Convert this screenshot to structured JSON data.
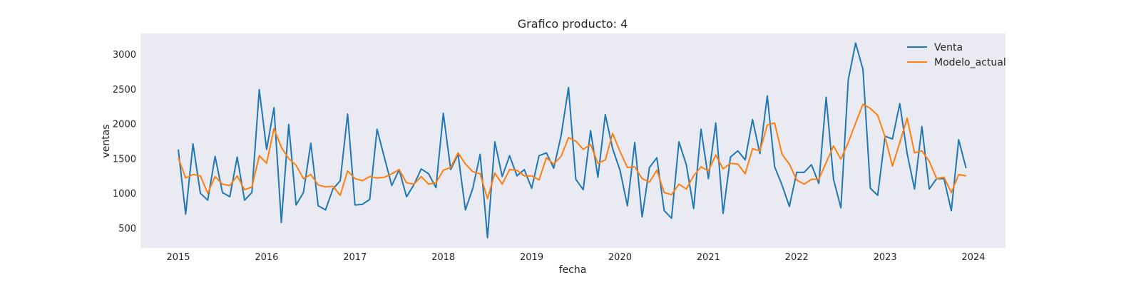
{
  "chart_data": {
    "type": "line",
    "title": "Grafico producto: 4",
    "xlabel": "fecha",
    "ylabel": "ventas",
    "x_start": "2015-01",
    "x_frequency": "monthly",
    "x_ticks": [
      "2015",
      "2016",
      "2017",
      "2018",
      "2019",
      "2020",
      "2021",
      "2022",
      "2023",
      "2024"
    ],
    "y_ticks": [
      500,
      1000,
      1500,
      2000,
      2500,
      3000
    ],
    "ylim": [
      200,
      3300
    ],
    "grid": false,
    "legend_position": "top-right",
    "background": "#eaeaf2",
    "series": [
      {
        "name": "Venta",
        "color": "#1f77b4",
        "values": [
          1630,
          700,
          1710,
          1000,
          900,
          1530,
          1010,
          950,
          1520,
          900,
          1010,
          2490,
          1630,
          2230,
          580,
          1990,
          830,
          1010,
          1720,
          820,
          760,
          1060,
          1180,
          2140,
          830,
          840,
          910,
          1920,
          1510,
          1110,
          1340,
          950,
          1120,
          1350,
          1280,
          1080,
          2150,
          1340,
          1560,
          760,
          1070,
          1560,
          360,
          1740,
          1240,
          1540,
          1250,
          1340,
          1070,
          1540,
          1580,
          1360,
          1830,
          2520,
          1200,
          1050,
          1900,
          1230,
          2130,
          1640,
          1330,
          820,
          1730,
          660,
          1370,
          1510,
          750,
          640,
          1740,
          1410,
          780,
          1920,
          1210,
          2010,
          710,
          1520,
          1610,
          1480,
          2060,
          1570,
          2400,
          1380,
          1120,
          810,
          1300,
          1300,
          1410,
          1140,
          2380,
          1200,
          790,
          2630,
          3160,
          2780,
          1070,
          970,
          1820,
          1780,
          2290,
          1570,
          1060,
          1960,
          1060,
          1210,
          1210,
          750,
          1770,
          1360
        ]
      },
      {
        "name": "Modelo_actual",
        "color": "#ff7f0e",
        "values": [
          1510,
          1220,
          1270,
          1250,
          1000,
          1240,
          1130,
          1110,
          1250,
          1050,
          1090,
          1540,
          1430,
          1930,
          1660,
          1500,
          1400,
          1210,
          1270,
          1120,
          1090,
          1100,
          970,
          1320,
          1210,
          1180,
          1240,
          1220,
          1230,
          1280,
          1340,
          1150,
          1130,
          1240,
          1130,
          1150,
          1330,
          1370,
          1580,
          1420,
          1310,
          1280,
          920,
          1290,
          1130,
          1340,
          1330,
          1250,
          1250,
          1190,
          1510,
          1420,
          1530,
          1800,
          1750,
          1630,
          1700,
          1430,
          1480,
          1860,
          1600,
          1370,
          1380,
          1210,
          1160,
          1330,
          1010,
          980,
          1130,
          1060,
          1250,
          1380,
          1320,
          1550,
          1350,
          1430,
          1420,
          1280,
          1640,
          1610,
          1980,
          2010,
          1560,
          1420,
          1190,
          1130,
          1200,
          1200,
          1440,
          1680,
          1490,
          1730,
          2010,
          2280,
          2220,
          2120,
          1810,
          1390,
          1730,
          2080,
          1580,
          1610,
          1460,
          1210,
          1230,
          1010,
          1270,
          1250
        ]
      }
    ]
  }
}
